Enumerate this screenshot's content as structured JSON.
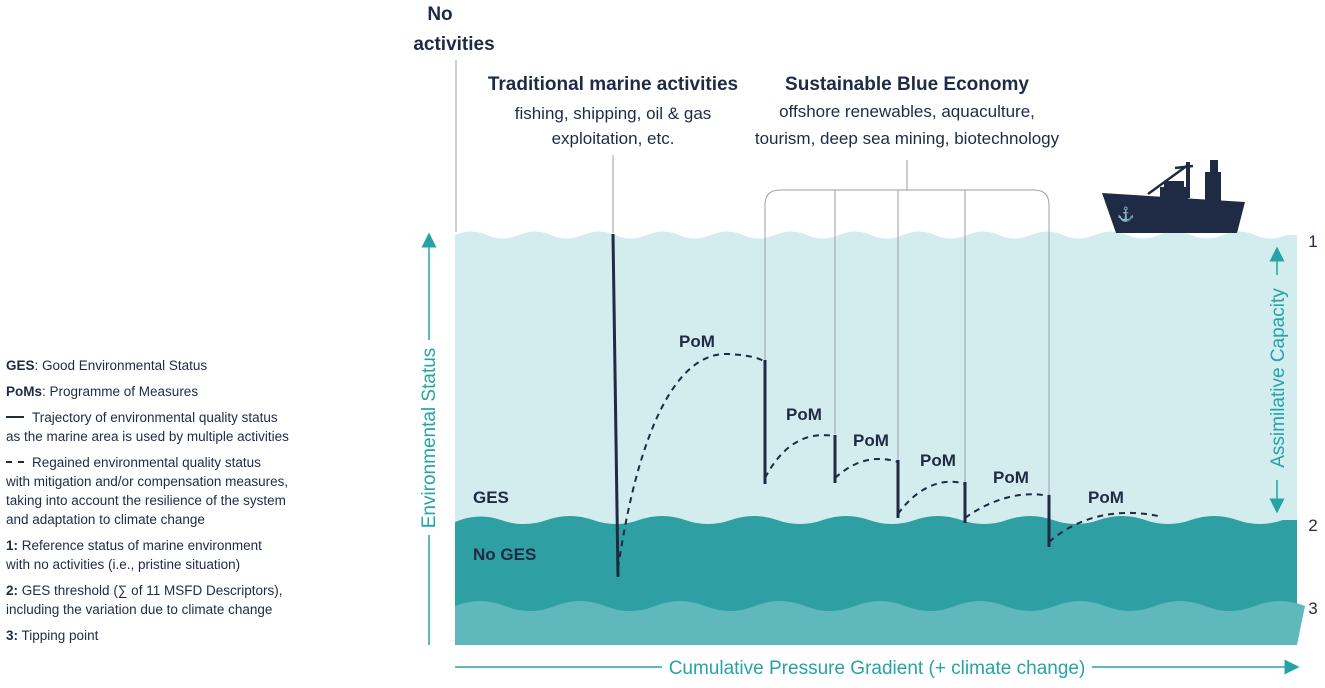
{
  "labels": {
    "no_activities_1": "No",
    "no_activities_2": "activities",
    "traditional_title": "Traditional marine activities",
    "traditional_sub_1": "fishing, shipping, oil & gas",
    "traditional_sub_2": "exploitation, etc.",
    "sbe_title": "Sustainable Blue Economy",
    "sbe_sub_1": "offshore renewables, aquaculture,",
    "sbe_sub_2": "tourism, deep sea mining, biotechnology",
    "ges": "GES",
    "no_ges": "No GES",
    "level_1": "1",
    "level_2": "2",
    "level_3": "3",
    "y_axis": "Environmental Status",
    "right_axis": "Assimilative Capacity",
    "x_axis": "Cumulative Pressure Gradient (+ climate change)",
    "pom": "PoM"
  },
  "legend": {
    "ges_term": "GES",
    "ges_def": ": Good Environmental Status",
    "poms_term": "PoMs",
    "poms_def": ": Programme of Measures",
    "solid_text_1": "Trajectory of environmental quality status",
    "solid_text_2": "as the marine area is used by multiple activities",
    "dashed_text_1": "Regained environmental quality status",
    "dashed_text_2": "with mitigation and/or compensation measures,",
    "dashed_text_3": "taking into account the resilience of the system",
    "dashed_text_4": "and adaptation to climate change",
    "l1_term": "1:",
    "l1_def_1": " Reference status of marine environment",
    "l1_def_2": "with no activities (i.e., pristine situation)",
    "l2_term": "2:",
    "l2_def_1": " GES threshold (∑ of 11 MSFD Descriptors),",
    "l2_def_2": "including the variation due to climate change",
    "l3_term": "3:",
    "l3_def": " Tipping point"
  },
  "colors": {
    "light_water": "#d3ecee",
    "mid_water": "#2e9fa3",
    "deep_water": "#5fb8bb",
    "accent": "#25a3a5",
    "navy": "#1f2a44"
  }
}
